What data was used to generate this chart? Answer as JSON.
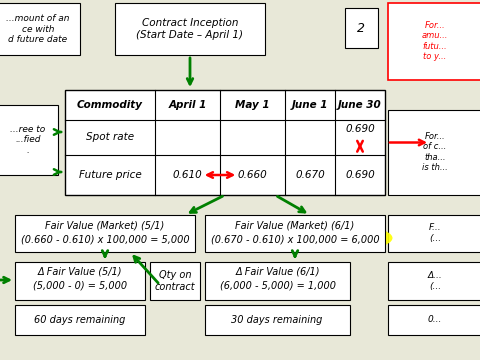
{
  "bg_color": "#e8e8d8",
  "inception_text": "Contract Inception\n(Start Date – April 1)",
  "table_headers": [
    "Commodity",
    "April 1",
    "May 1",
    "June 1",
    "June 30"
  ],
  "spot_rate_val": "0.690",
  "future_vals": [
    "0.610",
    "0.660",
    "0.670",
    "0.690"
  ],
  "fv51_line1": "Fair Value (Market) (5/1)",
  "fv51_line2": "(0.660 - 0.610) x 100,000 = 5,000",
  "fv61_line1": "Fair Value (Market) (6/1)",
  "fv61_line2": "(0.670 - 0.610) x 100,000 = 6,000",
  "dfv51_line1": "Δ Fair Value (5/1)",
  "dfv51_line2": "(5,000 - 0) = 5,000",
  "qty_text": "Qty on\ncontract",
  "dfv61_line1": "Δ Fair Value (6/1)",
  "dfv61_line2": "(6,000 - 5,000) = 1,000",
  "days60": "60 days remaining",
  "days30": "30 days remaining",
  "num2": "2",
  "right_top_lines": [
    "For...",
    "amu...",
    "futu...",
    "to y..."
  ],
  "right_mid_lines": [
    "For...",
    "of c...",
    "tha...",
    "is th..."
  ],
  "left_top_lines": [
    "...mount of an",
    "ce with",
    "d future date"
  ],
  "left_mid_lines": [
    "...ree to",
    "...fied",
    "."
  ]
}
